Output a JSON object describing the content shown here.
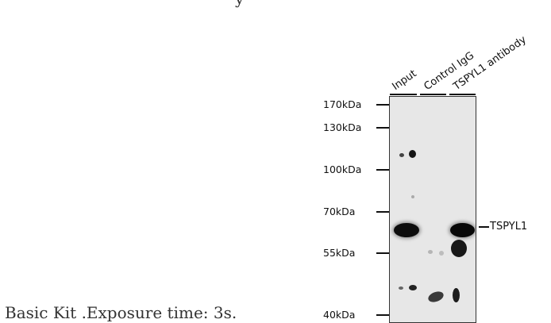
{
  "page": {
    "top_fragment": "y",
    "caption": "Basic Kit .Exposure time: 3s."
  },
  "blot": {
    "lanes": [
      "Input",
      "Control IgG",
      "TSPYL1 antibody"
    ],
    "markers": [
      "170kDa",
      "130kDa",
      "100kDa",
      "70kDa",
      "55kDa",
      "40kDa"
    ],
    "target": "TSPYL1"
  }
}
